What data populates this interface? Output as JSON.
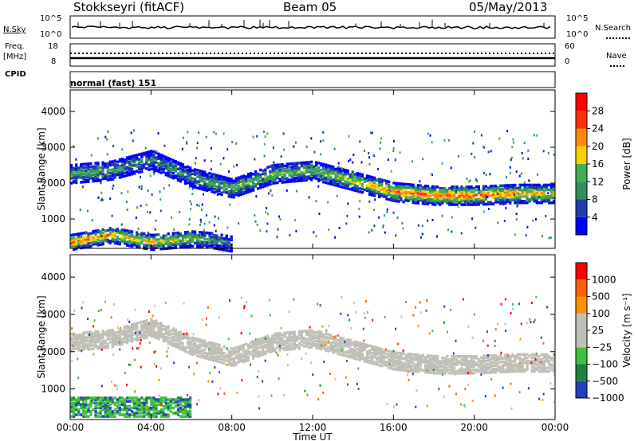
{
  "header": {
    "title": "Stokkseyri (fitACF)",
    "beam": "Beam 05",
    "date": "05/May/2013"
  },
  "sky_panel": {
    "label": "N.Sky",
    "left_ticks": [
      "10^5",
      "10^0"
    ],
    "right_ticks": [
      "10^5",
      "10^0"
    ],
    "right_label": "N.Search"
  },
  "freq_panel": {
    "label_line1": "Freq.",
    "label_line2": "[MHz]",
    "left_ticks": [
      "18",
      "8"
    ],
    "right_ticks": [
      "60",
      "0"
    ],
    "right_label": "Nave"
  },
  "cpid": {
    "label": "CPID",
    "value": "normal (fast) 151"
  },
  "colors": {
    "power_scale": [
      "#0000ff",
      "#1f3fa8",
      "#2f8f5f",
      "#3fb04f",
      "#ffd000",
      "#ff8c00",
      "#ff3000",
      "#ff0000"
    ],
    "velocity_scale": [
      "#2040c0",
      "#208040",
      "#40c040",
      "#c0c0b8",
      "#c0c0b8",
      "#ff9000",
      "#ff6000",
      "#ff0000"
    ]
  },
  "chart_data": [
    {
      "type": "heatmap",
      "title": "Power",
      "xlabel": "Time UT",
      "ylabel": "Slant Range [km]",
      "xticks": [
        "00:00",
        "04:00",
        "08:00",
        "12:00",
        "16:00",
        "20:00",
        "00:00"
      ],
      "yticks": [
        1000,
        2000,
        3000,
        4000
      ],
      "ylim": [
        180,
        4600
      ],
      "colorbar": {
        "label": "Power [dB]",
        "ticks": [
          "4",
          "8",
          "12",
          "16",
          "20",
          "24",
          "28"
        ]
      },
      "bands": [
        {
          "name": "upper",
          "hours": [
            0,
            2,
            4,
            6,
            8,
            10,
            12,
            14,
            16,
            18,
            20,
            22,
            24
          ],
          "center_km": [
            2300,
            2400,
            2700,
            2200,
            1900,
            2300,
            2400,
            2100,
            1800,
            1700,
            1700,
            1750,
            1750
          ],
          "level_db": [
            14,
            12,
            10,
            10,
            14,
            16,
            14,
            18,
            24,
            26,
            26,
            22,
            20
          ]
        },
        {
          "name": "lower",
          "hours": [
            0,
            1,
            2,
            3,
            4,
            5,
            6,
            7,
            8
          ],
          "center_km": [
            400,
            500,
            600,
            500,
            400,
            450,
            500,
            450,
            350
          ],
          "level_db": [
            26,
            24,
            22,
            20,
            20,
            18,
            16,
            12,
            8
          ]
        }
      ]
    },
    {
      "type": "heatmap",
      "title": "Velocity",
      "xlabel": "Time UT",
      "ylabel": "Slant Range [km]",
      "xticks": [
        "00:00",
        "04:00",
        "08:00",
        "12:00",
        "16:00",
        "20:00",
        "00:00"
      ],
      "yticks": [
        1000,
        2000,
        3000,
        4000
      ],
      "ylim": [
        180,
        4600
      ],
      "colorbar": {
        "label": "Velocity [m s⁻¹]",
        "ticks": [
          "1000",
          "500",
          "100",
          "25",
          "−25",
          "−100",
          "−500",
          "−1000"
        ]
      }
    }
  ]
}
